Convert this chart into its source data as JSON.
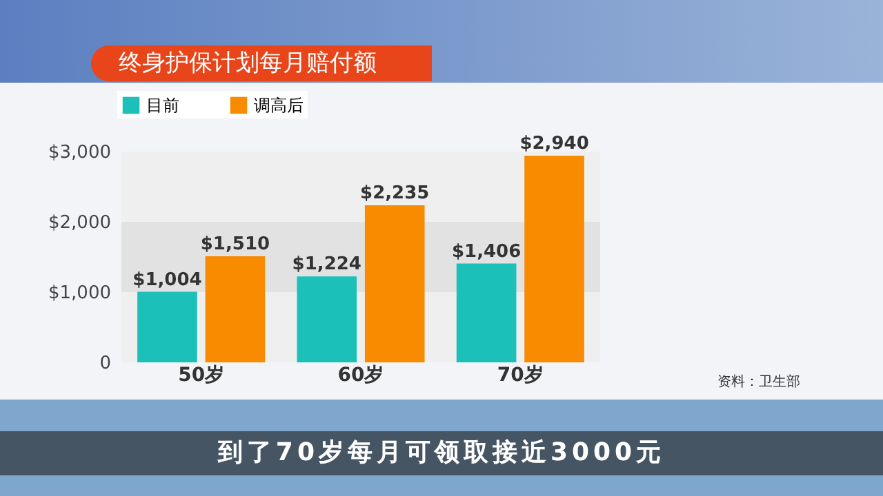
{
  "chart_data": {
    "type": "bar",
    "title": "终身护保计划每月赔付额",
    "categories": [
      "50岁",
      "60岁",
      "70岁"
    ],
    "series": [
      {
        "name": "目前",
        "color": "#1bc0b9",
        "values": [
          1004,
          1224,
          1406
        ],
        "value_labels": [
          "$1,004",
          "$1,224",
          "$1,406"
        ]
      },
      {
        "name": "调高后",
        "color": "#f98b00",
        "values": [
          1510,
          2235,
          2940
        ],
        "value_labels": [
          "$1,510",
          "$2,235",
          "$2,940"
        ]
      }
    ],
    "ylim": [
      0,
      3000
    ],
    "yticks": [
      {
        "value": 0,
        "label": "0"
      },
      {
        "value": 1000,
        "label": "$1,000"
      },
      {
        "value": 2000,
        "label": "$2,000"
      },
      {
        "value": 3000,
        "label": "$3,000"
      }
    ],
    "bands": [
      {
        "axis": "y",
        "from": 1000,
        "to": 2000,
        "color": "#e2e2e2"
      }
    ],
    "grid": false,
    "legend": "top left",
    "annotations": [
      "资料：卫生部",
      "到了70岁每月可领取接近3000元"
    ]
  }
}
